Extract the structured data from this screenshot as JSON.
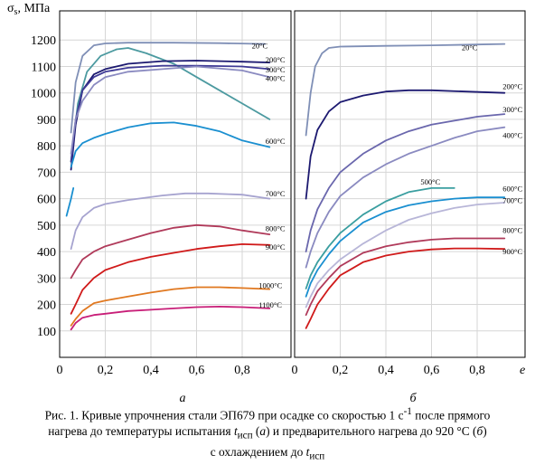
{
  "figure": {
    "ylabel_symbol": "σ",
    "ylabel_sub": "s",
    "ylabel_unit": ", МПа",
    "xlabel_right": "e"
  },
  "caption": {
    "part1": "Рис. 1. Кривые упрочнения стали ЭП679 при осадке со скоростью 1 с",
    "sup": "-1",
    "part2": " после прямого",
    "part3": "нагрева до температуры испытания ",
    "t1": "t",
    "t1_sub": "исп",
    "part4": " (",
    "a": "а",
    "part5": ") и предварительного нагрева до 920 °С (",
    "b": "б",
    "part6": ")",
    "part7": "с охлаждением до ",
    "t2": "t",
    "t2_sub": "исп"
  },
  "chart_data": [
    {
      "type": "line",
      "panel_label": "а",
      "xlabel": "",
      "ylabel": "σs, МПа",
      "xlim": [
        0,
        1.0
      ],
      "ylim": [
        0,
        1300
      ],
      "x_ticks": [
        "0",
        "0,2",
        "0,4",
        "0,6",
        "0,8"
      ],
      "y_ticks": [
        "100",
        "200",
        "300",
        "400",
        "500",
        "600",
        "700",
        "800",
        "900",
        "1000",
        "1100",
        "1200"
      ],
      "grid": true,
      "series": [
        {
          "name": "20°C",
          "color": "#7f8fb6",
          "points": [
            [
              0.05,
              850
            ],
            [
              0.07,
              1040
            ],
            [
              0.1,
              1140
            ],
            [
              0.15,
              1180
            ],
            [
              0.2,
              1187
            ],
            [
              0.3,
              1190
            ],
            [
              0.5,
              1190
            ],
            [
              0.7,
              1188
            ],
            [
              0.9,
              1185
            ]
          ]
        },
        {
          "name": "",
          "color": "#4c9aa0",
          "points": [
            [
              0.05,
              740
            ],
            [
              0.08,
              960
            ],
            [
              0.12,
              1080
            ],
            [
              0.18,
              1140
            ],
            [
              0.25,
              1165
            ],
            [
              0.3,
              1170
            ],
            [
              0.38,
              1150
            ],
            [
              0.5,
              1110
            ],
            [
              0.6,
              1060
            ],
            [
              0.7,
              1010
            ],
            [
              0.8,
              960
            ],
            [
              0.92,
              900
            ]
          ]
        },
        {
          "name": "200°C",
          "color": "#1c1970",
          "points": [
            [
              0.05,
              710
            ],
            [
              0.07,
              880
            ],
            [
              0.1,
              1010
            ],
            [
              0.15,
              1070
            ],
            [
              0.2,
              1090
            ],
            [
              0.3,
              1110
            ],
            [
              0.45,
              1120
            ],
            [
              0.6,
              1122
            ],
            [
              0.8,
              1118
            ],
            [
              0.92,
              1115
            ]
          ]
        },
        {
          "name": "300°C",
          "color": "#3f3a96",
          "points": [
            [
              0.05,
              740
            ],
            [
              0.07,
              900
            ],
            [
              0.1,
              1010
            ],
            [
              0.15,
              1060
            ],
            [
              0.2,
              1080
            ],
            [
              0.3,
              1095
            ],
            [
              0.45,
              1103
            ],
            [
              0.6,
              1103
            ],
            [
              0.8,
              1100
            ],
            [
              0.92,
              1090
            ]
          ]
        },
        {
          "name": "400°C",
          "color": "#8a8ac0",
          "points": [
            [
              0.05,
              770
            ],
            [
              0.07,
              900
            ],
            [
              0.1,
              970
            ],
            [
              0.15,
              1030
            ],
            [
              0.2,
              1060
            ],
            [
              0.3,
              1080
            ],
            [
              0.45,
              1090
            ],
            [
              0.6,
              1100
            ],
            [
              0.8,
              1085
            ],
            [
              0.92,
              1060
            ]
          ]
        },
        {
          "name": "600°C",
          "color": "#1a8fd0",
          "points": [
            [
              0.05,
              720
            ],
            [
              0.07,
              780
            ],
            [
              0.1,
              810
            ],
            [
              0.15,
              830
            ],
            [
              0.2,
              845
            ],
            [
              0.3,
              870
            ],
            [
              0.4,
              885
            ],
            [
              0.5,
              888
            ],
            [
              0.6,
              875
            ],
            [
              0.7,
              855
            ],
            [
              0.8,
              820
            ],
            [
              0.92,
              795
            ]
          ]
        },
        {
          "name": "",
          "color": "#1a8fd0",
          "points": [
            [
              0.03,
              535
            ],
            [
              0.05,
              600
            ],
            [
              0.06,
              640
            ]
          ]
        },
        {
          "name": "700°C",
          "color": "#a6a3cf",
          "points": [
            [
              0.05,
              410
            ],
            [
              0.07,
              480
            ],
            [
              0.1,
              530
            ],
            [
              0.15,
              565
            ],
            [
              0.2,
              580
            ],
            [
              0.3,
              595
            ],
            [
              0.45,
              612
            ],
            [
              0.55,
              620
            ],
            [
              0.65,
              620
            ],
            [
              0.8,
              615
            ],
            [
              0.92,
              600
            ]
          ]
        },
        {
          "name": "800°C",
          "color": "#b03a5a",
          "points": [
            [
              0.05,
              300
            ],
            [
              0.07,
              330
            ],
            [
              0.1,
              370
            ],
            [
              0.15,
              400
            ],
            [
              0.2,
              420
            ],
            [
              0.3,
              445
            ],
            [
              0.4,
              470
            ],
            [
              0.5,
              490
            ],
            [
              0.6,
              500
            ],
            [
              0.7,
              495
            ],
            [
              0.8,
              480
            ],
            [
              0.92,
              465
            ]
          ]
        },
        {
          "name": "900°C",
          "color": "#d01a1a",
          "points": [
            [
              0.05,
              165
            ],
            [
              0.07,
              200
            ],
            [
              0.1,
              255
            ],
            [
              0.15,
              300
            ],
            [
              0.2,
              330
            ],
            [
              0.3,
              360
            ],
            [
              0.4,
              380
            ],
            [
              0.5,
              395
            ],
            [
              0.6,
              410
            ],
            [
              0.7,
              420
            ],
            [
              0.8,
              428
            ],
            [
              0.92,
              425
            ]
          ]
        },
        {
          "name": "1000°C",
          "color": "#e07820",
          "points": [
            [
              0.05,
              120
            ],
            [
              0.07,
              145
            ],
            [
              0.1,
              175
            ],
            [
              0.15,
              205
            ],
            [
              0.2,
              215
            ],
            [
              0.3,
              230
            ],
            [
              0.4,
              245
            ],
            [
              0.5,
              258
            ],
            [
              0.6,
              265
            ],
            [
              0.7,
              265
            ],
            [
              0.8,
              262
            ],
            [
              0.92,
              258
            ]
          ]
        },
        {
          "name": "1100°C",
          "color": "#c81e78",
          "points": [
            [
              0.05,
              105
            ],
            [
              0.07,
              130
            ],
            [
              0.1,
              150
            ],
            [
              0.15,
              160
            ],
            [
              0.2,
              165
            ],
            [
              0.3,
              175
            ],
            [
              0.4,
              180
            ],
            [
              0.5,
              185
            ],
            [
              0.6,
              190
            ],
            [
              0.7,
              192
            ],
            [
              0.8,
              190
            ],
            [
              0.92,
              185
            ]
          ]
        }
      ]
    },
    {
      "type": "line",
      "panel_label": "б",
      "xlabel": "e",
      "ylabel": "",
      "xlim": [
        0,
        1.0
      ],
      "ylim": [
        0,
        1300
      ],
      "x_ticks": [
        "0",
        "0,2",
        "0,4",
        "0,6",
        "0,8"
      ],
      "y_ticks": [],
      "grid": true,
      "series": [
        {
          "name": "20°C",
          "color": "#7f8fb6",
          "points": [
            [
              0.05,
              840
            ],
            [
              0.07,
              1000
            ],
            [
              0.09,
              1100
            ],
            [
              0.12,
              1150
            ],
            [
              0.15,
              1170
            ],
            [
              0.2,
              1175
            ],
            [
              0.4,
              1178
            ],
            [
              0.6,
              1180
            ],
            [
              0.8,
              1183
            ],
            [
              0.92,
              1185
            ]
          ]
        },
        {
          "name": "200°C",
          "color": "#1c1970",
          "points": [
            [
              0.05,
              600
            ],
            [
              0.07,
              760
            ],
            [
              0.1,
              860
            ],
            [
              0.15,
              930
            ],
            [
              0.2,
              965
            ],
            [
              0.3,
              990
            ],
            [
              0.4,
              1005
            ],
            [
              0.5,
              1010
            ],
            [
              0.6,
              1010
            ],
            [
              0.75,
              1005
            ],
            [
              0.92,
              1000
            ]
          ]
        },
        {
          "name": "300°C",
          "color": "#6a67ad",
          "points": [
            [
              0.05,
              400
            ],
            [
              0.07,
              480
            ],
            [
              0.1,
              560
            ],
            [
              0.15,
              640
            ],
            [
              0.2,
              700
            ],
            [
              0.3,
              770
            ],
            [
              0.4,
              820
            ],
            [
              0.5,
              855
            ],
            [
              0.6,
              880
            ],
            [
              0.7,
              895
            ],
            [
              0.8,
              910
            ],
            [
              0.92,
              920
            ]
          ]
        },
        {
          "name": "400°C",
          "color": "#8a8ac0",
          "points": [
            [
              0.05,
              340
            ],
            [
              0.07,
              400
            ],
            [
              0.1,
              470
            ],
            [
              0.15,
              550
            ],
            [
              0.2,
              610
            ],
            [
              0.3,
              680
            ],
            [
              0.4,
              730
            ],
            [
              0.5,
              770
            ],
            [
              0.6,
              800
            ],
            [
              0.7,
              830
            ],
            [
              0.8,
              855
            ],
            [
              0.92,
              870
            ]
          ]
        },
        {
          "name": "500°C",
          "color": "#3a9ea0",
          "points": [
            [
              0.05,
              260
            ],
            [
              0.07,
              310
            ],
            [
              0.1,
              360
            ],
            [
              0.15,
              420
            ],
            [
              0.2,
              470
            ],
            [
              0.3,
              540
            ],
            [
              0.4,
              590
            ],
            [
              0.5,
              625
            ],
            [
              0.6,
              640
            ],
            [
              0.7,
              640
            ]
          ]
        },
        {
          "name": "600°C",
          "color": "#1a8fd0",
          "points": [
            [
              0.05,
              230
            ],
            [
              0.07,
              280
            ],
            [
              0.1,
              330
            ],
            [
              0.15,
              390
            ],
            [
              0.2,
              440
            ],
            [
              0.3,
              510
            ],
            [
              0.4,
              550
            ],
            [
              0.5,
              575
            ],
            [
              0.6,
              590
            ],
            [
              0.7,
              600
            ],
            [
              0.8,
              605
            ],
            [
              0.92,
              605
            ]
          ]
        },
        {
          "name": "700°C",
          "color": "#b8b6d8",
          "points": [
            [
              0.05,
              190
            ],
            [
              0.07,
              230
            ],
            [
              0.1,
              280
            ],
            [
              0.15,
              330
            ],
            [
              0.2,
              370
            ],
            [
              0.3,
              430
            ],
            [
              0.4,
              480
            ],
            [
              0.5,
              520
            ],
            [
              0.6,
              545
            ],
            [
              0.7,
              565
            ],
            [
              0.8,
              578
            ],
            [
              0.92,
              585
            ]
          ]
        },
        {
          "name": "800°C",
          "color": "#b03a5a",
          "points": [
            [
              0.05,
              160
            ],
            [
              0.07,
              200
            ],
            [
              0.1,
              250
            ],
            [
              0.15,
              300
            ],
            [
              0.2,
              345
            ],
            [
              0.3,
              395
            ],
            [
              0.4,
              420
            ],
            [
              0.5,
              435
            ],
            [
              0.6,
              445
            ],
            [
              0.7,
              450
            ],
            [
              0.8,
              450
            ],
            [
              0.92,
              450
            ]
          ]
        },
        {
          "name": "900°C",
          "color": "#d01a1a",
          "points": [
            [
              0.05,
              110
            ],
            [
              0.07,
              145
            ],
            [
              0.1,
              200
            ],
            [
              0.15,
              260
            ],
            [
              0.2,
              310
            ],
            [
              0.3,
              360
            ],
            [
              0.4,
              385
            ],
            [
              0.5,
              400
            ],
            [
              0.6,
              408
            ],
            [
              0.7,
              412
            ],
            [
              0.8,
              412
            ],
            [
              0.92,
              410
            ]
          ]
        }
      ]
    }
  ]
}
